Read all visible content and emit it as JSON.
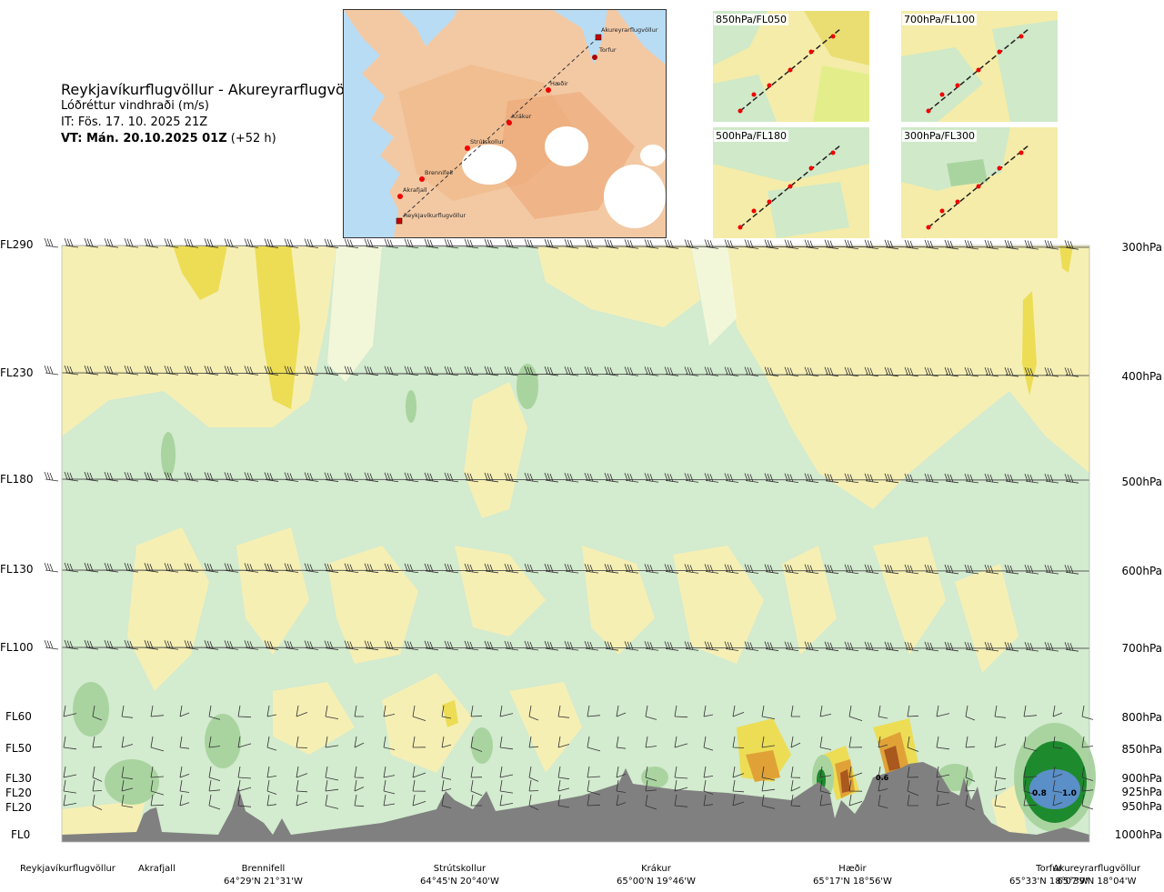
{
  "header": {
    "route": "Reykjavíkurflugvöllur - Akureyrarflugvöllur",
    "variable": "Lóðréttur vindhraði (m/s)",
    "issue_time": "IT: Fös. 17. 10. 2025 21Z",
    "valid_time_label": "VT: Mán. 20.10.2025 01Z",
    "valid_time_offset": "(+52 h)"
  },
  "overview_map": {
    "waypoints": [
      "Akureyrarflugvöllur",
      "Torfur",
      "Hæðir",
      "Krákur",
      "Strútskollur",
      "Brennifell",
      "Akrafjall",
      "Reykjavíkurflugvöllur"
    ]
  },
  "level_maps": [
    {
      "label": "850hPa/FL050"
    },
    {
      "label": "700hPa/FL100"
    },
    {
      "label": "500hPa/FL180"
    },
    {
      "label": "300hPa/FL300"
    }
  ],
  "flight_levels": [
    "FL290",
    "FL230",
    "FL180",
    "FL130",
    "FL100",
    "FL60",
    "FL50",
    "FL30",
    "FL20",
    "FL20",
    "FL0"
  ],
  "pressure_levels": [
    "300hPa",
    "400hPa",
    "500hPa",
    "600hPa",
    "700hPa",
    "800hPa",
    "850hPa",
    "900hPa",
    "925hPa",
    "950hPa",
    "1000hPa"
  ],
  "contour_labels": [
    "0.8",
    "1.0",
    "0.6"
  ],
  "stations": [
    {
      "name": "Reykjavíkurflugvöllur",
      "coord": ""
    },
    {
      "name": "Akrafjall",
      "coord": ""
    },
    {
      "name": "Brennifell",
      "coord": "64°29'N 21°31'W"
    },
    {
      "name": "Strútskollur",
      "coord": "64°45'N 20°40'W"
    },
    {
      "name": "Krákur",
      "coord": "65°00'N 19°46'W"
    },
    {
      "name": "Hæðir",
      "coord": "65°17'N 18°56'W"
    },
    {
      "name": "Torfur",
      "coord": "65°33'N 18°07'W"
    },
    {
      "name": "Akureyrarflugvöllur",
      "coord": "65°39'N 18°04'W"
    }
  ],
  "colors": {
    "light_green": "#d3ebcf",
    "mid_green": "#a9d4a0",
    "dark_green": "#1e8a2e",
    "blue": "#5a8fc8",
    "light_yellow": "#f6efb4",
    "yellow": "#ecdd55",
    "orange": "#e0a236",
    "brown": "#a9581e",
    "terrain": "#808080",
    "sea": "#b8dcf4",
    "land": "#f3c9a4"
  }
}
